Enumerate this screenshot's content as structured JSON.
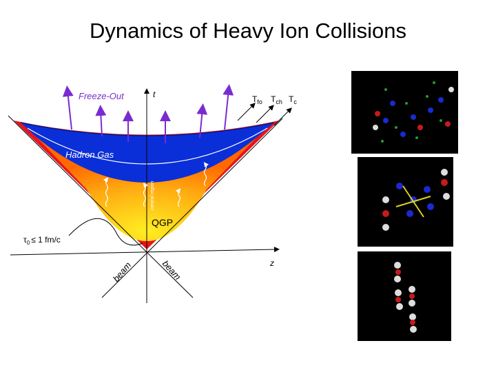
{
  "title": "Dynamics of Heavy Ion Collisions",
  "diagram": {
    "freeze_out": "Freeze-Out",
    "time_axis": "t",
    "space_axis": "z",
    "temperatures": [
      {
        "symbol": "T",
        "sub": "fo"
      },
      {
        "symbol": "T",
        "sub": "ch"
      },
      {
        "symbol": "T",
        "sub": "c"
      }
    ],
    "hadron_gas": "Hadron Gas",
    "central_region": "central region",
    "qgp": "QGP",
    "tau": {
      "symbol": "τ",
      "sub": "0",
      "rest": "≤ 1 fm/c"
    },
    "beams": [
      "beam",
      "beam"
    ]
  }
}
